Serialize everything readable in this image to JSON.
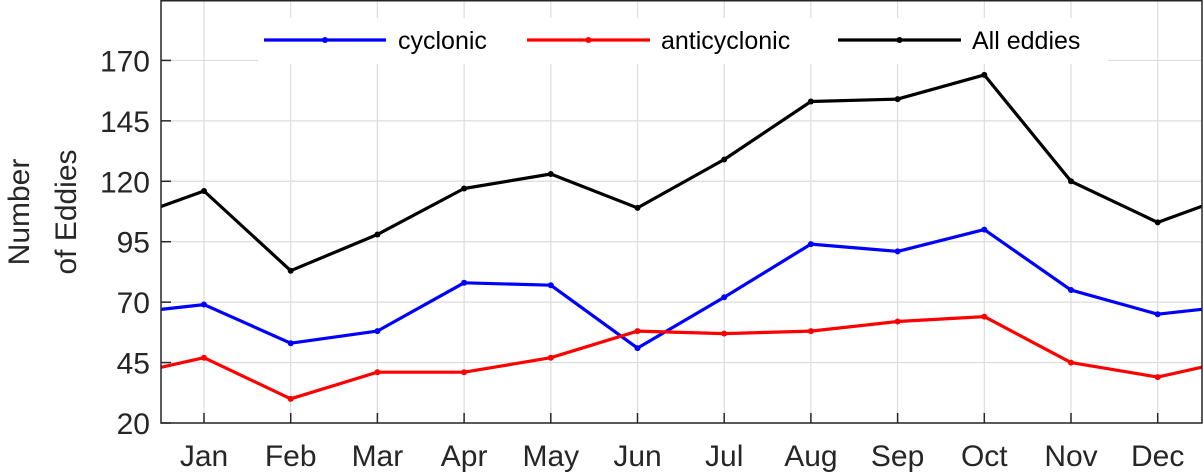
{
  "chart_data": {
    "type": "line",
    "categories": [
      "Jan",
      "Feb",
      "Mar",
      "Apr",
      "May",
      "Jun",
      "Jul",
      "Aug",
      "Sep",
      "Oct",
      "Nov",
      "Dec"
    ],
    "ylabel_line1": "Number",
    "ylabel_line2": "of Eddies",
    "xlabel": "",
    "ylim": [
      20,
      195
    ],
    "yticks": [
      20,
      45,
      70,
      95,
      120,
      145,
      170
    ],
    "series": [
      {
        "name": "cyclonic",
        "color": "#0000ff",
        "values": [
          69,
          53,
          58,
          78,
          77,
          51,
          72,
          94,
          91,
          100,
          75,
          65
        ]
      },
      {
        "name": "anticyclonic",
        "color": "#ff0000",
        "values": [
          47,
          30,
          41,
          41,
          47,
          58,
          57,
          58,
          62,
          64,
          45,
          39
        ]
      },
      {
        "name": "All eddies",
        "color": "#000000",
        "values": [
          116,
          83,
          98,
          117,
          123,
          109,
          129,
          153,
          154,
          164,
          120,
          103
        ]
      }
    ],
    "grid": true,
    "legend_position": "top"
  }
}
